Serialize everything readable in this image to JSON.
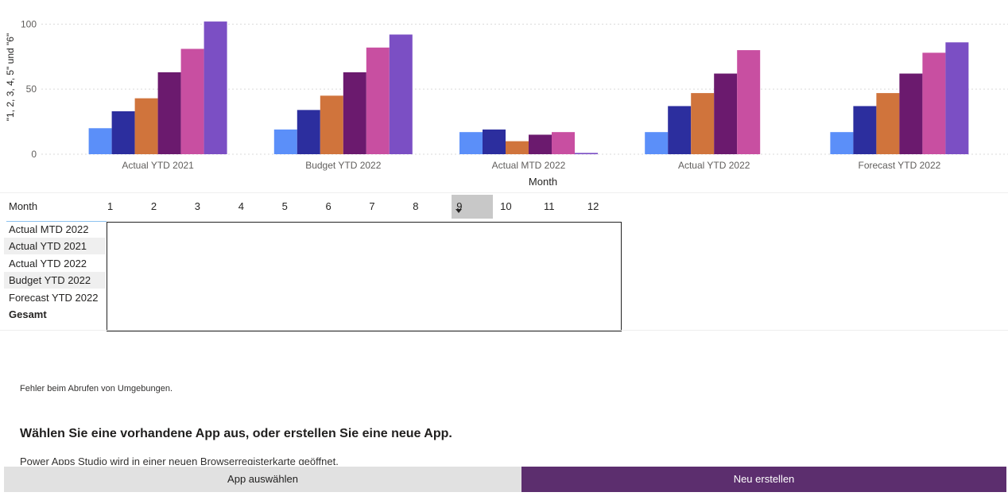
{
  "chart_data": {
    "type": "bar",
    "ylabel": "\"1, 2, 3, 4, 5\" und \"6\"",
    "xlabel": "Month",
    "ylim": [
      0,
      110
    ],
    "yticks": [
      0,
      50,
      100
    ],
    "grid": true,
    "categories": [
      "Actual YTD 2021",
      "Budget YTD 2022",
      "Actual MTD 2022",
      "Actual YTD 2022",
      "Forecast YTD 2022"
    ],
    "series": [
      {
        "values": [
          20,
          19,
          17,
          17,
          17
        ],
        "color": "#5b8ff9"
      },
      {
        "values": [
          33,
          34,
          19,
          37,
          37
        ],
        "color": "#2c2e9e"
      },
      {
        "values": [
          43,
          45,
          10,
          47,
          47
        ],
        "color": "#d0743c"
      },
      {
        "values": [
          63,
          63,
          15,
          62,
          62
        ],
        "color": "#6b1a6e"
      },
      {
        "values": [
          81,
          82,
          17,
          80,
          78
        ],
        "color": "#c84fa1"
      },
      {
        "values": [
          102,
          92,
          1,
          null,
          86
        ],
        "color": "#7b4fc4"
      }
    ]
  },
  "matrix": {
    "month_title": "Month",
    "months": [
      "1",
      "2",
      "3",
      "4",
      "5",
      "6",
      "7",
      "8",
      "9",
      "10",
      "11",
      "12"
    ],
    "selected_month": "9",
    "rows": [
      "Actual MTD 2022",
      "Actual YTD 2021",
      "Actual YTD 2022",
      "Budget YTD 2022",
      "Forecast YTD 2022"
    ],
    "total_label": "Gesamt"
  },
  "powerapps": {
    "error": "Fehler beim Abrufen von Umgebungen.",
    "heading": "Wählen Sie eine vorhandene App aus, oder erstellen Sie eine neue App.",
    "subtext": "Power Apps Studio wird in einer neuen Browserregisterkarte geöffnet.",
    "select_button": "App auswählen",
    "new_button": "Neu erstellen"
  }
}
